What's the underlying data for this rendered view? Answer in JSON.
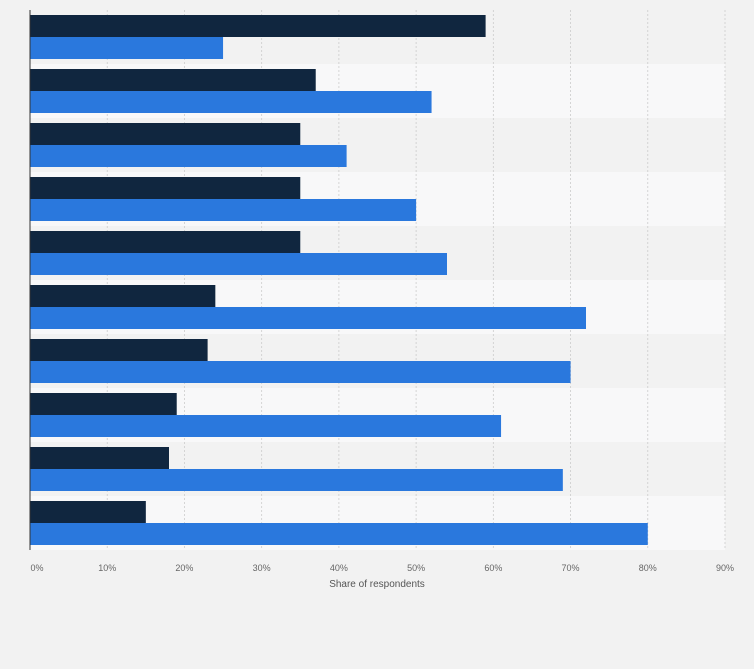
{
  "chart_data": {
    "type": "bar",
    "orientation": "horizontal",
    "xlabel": "Share of respondents",
    "xlim": [
      0,
      90
    ],
    "xticks": [
      "0%",
      "10%",
      "20%",
      "30%",
      "40%",
      "50%",
      "60%",
      "70%",
      "80%",
      "90%"
    ],
    "categories": [
      "",
      "",
      "",
      "",
      "",
      "",
      "",
      "",
      "",
      ""
    ],
    "series": [
      {
        "color": "#10263f",
        "values": [
          59,
          37,
          35,
          35,
          35,
          24,
          23,
          19,
          18,
          15
        ]
      },
      {
        "color": "#2a78dd",
        "values": [
          25,
          52,
          41,
          50,
          54,
          72,
          70,
          61,
          69,
          80
        ]
      }
    ],
    "grid": true,
    "legend": "none"
  },
  "colors": {
    "background": "#f2f2f2",
    "band_alt": "#f8f8f9",
    "gridline": "#cccccc",
    "axis": "#333333"
  }
}
